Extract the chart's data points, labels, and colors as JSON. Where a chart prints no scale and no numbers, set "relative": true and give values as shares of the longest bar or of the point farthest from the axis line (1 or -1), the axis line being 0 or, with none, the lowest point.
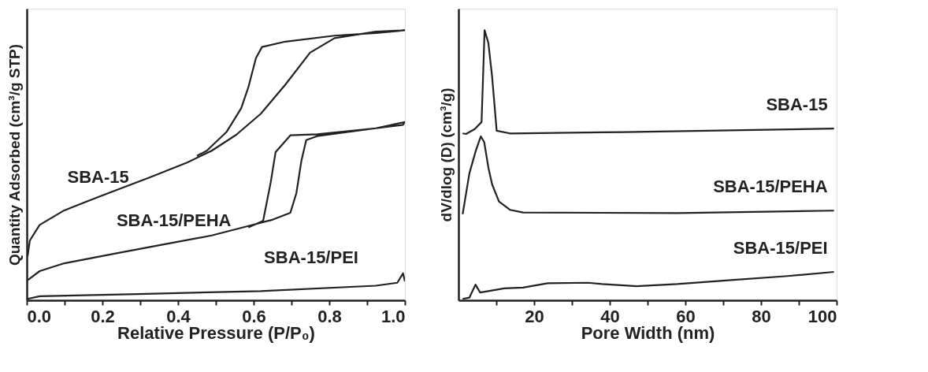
{
  "chart_data": [
    {
      "type": "line",
      "relative": true,
      "xlabel": "Relative Pressure (P/P₀)",
      "ylabel": "Quantity Adsorbed (cm³/g STP)",
      "xlim": [
        0,
        1
      ],
      "xticks": [
        {
          "value": 0,
          "label": "0.0"
        },
        {
          "value": 0.1,
          "label": null
        },
        {
          "value": 0.2,
          "label": "0.2"
        },
        {
          "value": 0.3,
          "label": null
        },
        {
          "value": 0.4,
          "label": "0.4"
        },
        {
          "value": 0.5,
          "label": null
        },
        {
          "value": 0.6,
          "label": "0.6"
        },
        {
          "value": 0.7,
          "label": null
        },
        {
          "value": 0.8,
          "label": "0.8"
        },
        {
          "value": 0.9,
          "label": null
        },
        {
          "value": 1,
          "label": "1.0"
        }
      ],
      "tick_labels": "x",
      "grid": false,
      "marker": "none",
      "line_style": "solid",
      "series": [
        {
          "name": "SBA-15",
          "color": "#222222",
          "x": [
            0.002,
            0.008,
            0.034,
            0.099,
            0.197,
            0.327,
            0.424,
            0.489,
            0.554,
            0.619,
            0.684,
            0.749,
            0.814,
            0.923,
            1.0,
            0.923,
            0.814,
            0.684,
            0.622,
            0.606,
            0.586,
            0.567,
            0.528,
            0.476,
            0.45
          ],
          "values": [
            0.162,
            0.221,
            0.279,
            0.333,
            0.387,
            0.456,
            0.51,
            0.554,
            0.613,
            0.691,
            0.799,
            0.917,
            0.971,
            0.995,
            1.0,
            0.99,
            0.98,
            0.958,
            0.938,
            0.897,
            0.789,
            0.711,
            0.623,
            0.554,
            0.535
          ]
        },
        {
          "name": "SBA-15/PEHA",
          "color": "#222222",
          "x": [
            0.002,
            0.034,
            0.099,
            0.229,
            0.359,
            0.489,
            0.586,
            0.651,
            0.697,
            0.713,
            0.726,
            0.739,
            0.768,
            0.923,
            0.995,
            1.0,
            0.923,
            0.768,
            0.697,
            0.658,
            0.645,
            0.625,
            0.586
          ],
          "values": [
            0.074,
            0.108,
            0.137,
            0.172,
            0.206,
            0.24,
            0.275,
            0.299,
            0.324,
            0.397,
            0.515,
            0.593,
            0.608,
            0.637,
            0.65,
            0.66,
            0.637,
            0.615,
            0.611,
            0.549,
            0.436,
            0.294,
            0.27
          ]
        },
        {
          "name": "SBA-15/PEI",
          "color": "#222222",
          "x": [
            0.002,
            0.034,
            0.294,
            0.619,
            0.923,
            0.98,
            0.995,
            1.0
          ],
          "values": [
            0.005,
            0.015,
            0.023,
            0.034,
            0.054,
            0.065,
            0.1,
            0.07
          ]
        }
      ]
    },
    {
      "type": "line",
      "relative": true,
      "xlabel": "Pore Width (nm)",
      "ylabel": "dV/dlog (D) (cm³/g)",
      "xlim": [
        0,
        100
      ],
      "xticks": [
        {
          "value": 10,
          "label": null
        },
        20,
        {
          "value": 30,
          "label": null
        },
        40,
        {
          "value": 50,
          "label": null
        },
        60,
        {
          "value": 70,
          "label": null
        },
        80,
        {
          "value": 90,
          "label": null
        },
        100
      ],
      "tick_labels": "x",
      "grid": false,
      "marker": "none",
      "line_style": "solid",
      "series": [
        {
          "name": "SBA-15",
          "color": "#222222",
          "x": [
            1.1,
            2,
            4.3,
            6.1,
            6.4,
            6.9,
            7.9,
            8.9,
            10.1,
            13.6,
            43.6,
            99.3
          ],
          "values": [
            0.618,
            0.616,
            0.634,
            0.66,
            0.785,
            1.0,
            0.953,
            0.827,
            0.628,
            0.618,
            0.623,
            0.636
          ]
        },
        {
          "name": "SBA-15/PEHA",
          "color": "#222222",
          "x": [
            1.1,
            2.9,
            4.6,
            5.9,
            6.8,
            7.9,
            8.9,
            10.7,
            13.6,
            17.1,
            57.9,
            99.3
          ],
          "values": [
            0.319,
            0.471,
            0.555,
            0.607,
            0.586,
            0.492,
            0.429,
            0.366,
            0.335,
            0.325,
            0.323,
            0.332
          ]
        },
        {
          "name": "SBA-15/PEI",
          "color": "#222222",
          "x": [
            1.1,
            2.9,
            4.5,
            5.7,
            7.9,
            12.1,
            17.1,
            23.6,
            34.3,
            37.9,
            47.1,
            57.9,
            72.1,
            86.4,
            99.3
          ],
          "values": [
            0.005,
            0.01,
            0.058,
            0.029,
            0.034,
            0.044,
            0.047,
            0.063,
            0.065,
            0.06,
            0.052,
            0.06,
            0.075,
            0.089,
            0.105
          ]
        }
      ]
    }
  ]
}
